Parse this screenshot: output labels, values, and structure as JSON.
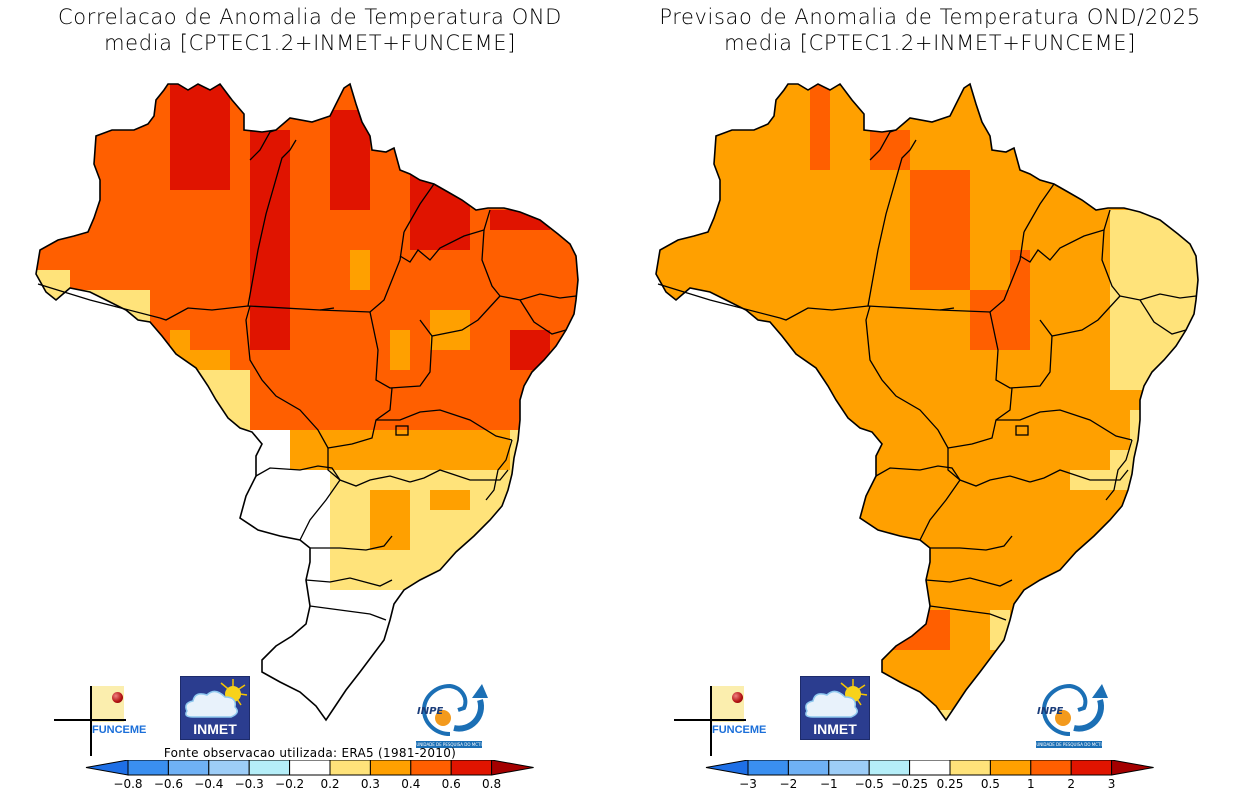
{
  "panels": [
    {
      "id": "correlation",
      "title_line1": "Correlacao de Anomalia de Temperatura OND",
      "title_line2": "media [CPTEC1.2+INMET+FUNCEME]",
      "source_note": "Fonte observacao utilizada: ERA5 (1981-2010)",
      "colorbar": {
        "ticks": [
          "-0.8",
          "-0.6",
          "-0.4",
          "-0.3",
          "-0.2",
          "0.2",
          "0.3",
          "0.4",
          "0.6",
          "0.8"
        ],
        "colors": [
          "#1e6fe6",
          "#3a8ff0",
          "#6fb1f5",
          "#9dcdf7",
          "#b5eef8",
          "#ffffff",
          "#ffe37a",
          "#ffa000",
          "#ff5f00",
          "#e01400",
          "#a40000"
        ],
        "extend": "both"
      },
      "field": {
        "dominant_category": "0.4-0.6 (orange-red)",
        "notes": "Highest correlation (>0.6) over Roraima, northern Para, Maranhao and eastern Northeast coast; white (no signal) over South region"
      }
    },
    {
      "id": "forecast",
      "title_line1": "Previsao de Anomalia de Temperatura OND/2025",
      "title_line2": "media [CPTEC1.2+INMET+FUNCEME]",
      "colorbar": {
        "ticks": [
          "-3",
          "-2",
          "-1",
          "-0.5",
          "-0.25",
          "0.25",
          "0.5",
          "1",
          "2",
          "3"
        ],
        "colors": [
          "#1e6fe6",
          "#3a8ff0",
          "#6fb1f5",
          "#9dcdf7",
          "#b5eef8",
          "#ffffff",
          "#ffe37a",
          "#ffa000",
          "#ff5f00",
          "#e01400",
          "#a40000"
        ],
        "extend": "both"
      },
      "field": {
        "dominant_category": "0.5-1 (orange)",
        "notes": "Anomalies 1-2 over Roraima, central Para, Tocantins and western Rio Grande do Sul; 0.25-0.5 along the east coast"
      }
    }
  ],
  "logos": {
    "funceme": "FUNCEME",
    "inmet": "INMET",
    "inpe": "INPE",
    "inpe_sub": "UNIDADE DE PESQUISA DO MCTI"
  },
  "chart_data": [
    {
      "type": "heatmap",
      "title": "Correlacao de Anomalia de Temperatura OND media [CPTEC1.2+INMET+FUNCEME]",
      "legend": "bottom",
      "levels": [
        -0.8,
        -0.6,
        -0.4,
        -0.3,
        -0.2,
        0.2,
        0.3,
        0.4,
        0.6,
        0.8
      ],
      "region_values": {
        "Roraima": "0.6-0.8",
        "Amazonas_north": "0.6-0.8",
        "Amazonas_central": "0.4-0.6",
        "Acre": "0.2-0.3",
        "Rondonia": "0.3-0.4",
        "Para_west": "0.6-0.8",
        "Para_east": "0.4-0.6",
        "Amapa": "0.4-0.6",
        "Maranhao": "0.6-0.8",
        "Piaui": "0.4-0.6",
        "Ceara": "0.4-0.6",
        "Pernambuco_coast": "0.6-0.8",
        "Bahia": "0.4-0.6",
        "Tocantins": "0.4-0.6",
        "Mato_Grosso": "0.4-0.6",
        "Goias": "0.3-0.4",
        "Minas_Gerais": "0.2-0.3",
        "Sao_Paulo": "0.3-0.4",
        "Mato_Grosso_do_Sul": "-0.2-0.2",
        "Parana": "-0.2-0.2",
        "Santa_Catarina": "-0.2-0.2",
        "Rio_Grande_do_Sul": "-0.2-0.2"
      }
    },
    {
      "type": "heatmap",
      "title": "Previsao de Anomalia de Temperatura OND/2025 media [CPTEC1.2+INMET+FUNCEME]",
      "legend": "bottom",
      "levels": [
        -3,
        -2,
        -1,
        -0.5,
        -0.25,
        0.25,
        0.5,
        1,
        2,
        3
      ],
      "region_values": {
        "Roraima": "1-2",
        "Amazonas": "0.5-1",
        "Acre": "0.5-1",
        "Rondonia": "0.5-1",
        "Para_central": "1-2",
        "Tocantins_north": "1-2",
        "Amapa": "0.5-1",
        "Maranhao": "0.5-1",
        "Northeast_coast": "0.25-0.5",
        "Bahia": "0.5-1",
        "Mato_Grosso": "0.5-1",
        "Goias": "0.5-1",
        "Minas_Gerais": "0.5-1",
        "Sao_Paulo": "0.5-1",
        "Mato_Grosso_do_Sul": "0.5-1",
        "Parana": "0.5-1",
        "Santa_Catarina": "0.5-1",
        "Rio_Grande_do_Sul_west": "1-2",
        "Southeast_coast": "0.25-0.5"
      }
    }
  ]
}
